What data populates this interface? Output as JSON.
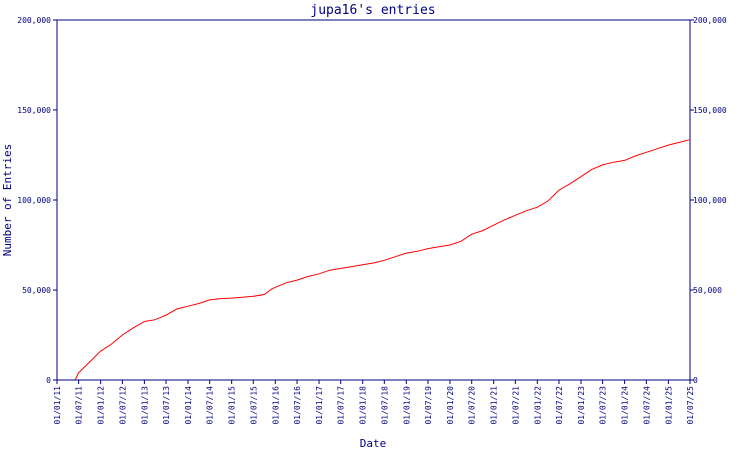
{
  "chart_data": {
    "type": "line",
    "title": "jupa16's entries",
    "xlabel": "Date",
    "ylabel": "Number of Entries",
    "ylim": [
      0,
      200000
    ],
    "y_ticks": [
      {
        "value": 0,
        "label": "0"
      },
      {
        "value": 50000,
        "label": "50,000"
      },
      {
        "value": 100000,
        "label": "100,000"
      },
      {
        "value": 150000,
        "label": "150,000"
      },
      {
        "value": 200000,
        "label": "200,000"
      }
    ],
    "xlim": [
      "2011-01-01",
      "2025-07-01"
    ],
    "x_ticks": [
      {
        "date": "2011-01-01",
        "label": "01/01/11"
      },
      {
        "date": "2011-07-01",
        "label": "01/07/11"
      },
      {
        "date": "2012-01-01",
        "label": "01/01/12"
      },
      {
        "date": "2012-07-01",
        "label": "01/07/12"
      },
      {
        "date": "2013-01-01",
        "label": "01/01/13"
      },
      {
        "date": "2013-07-01",
        "label": "01/07/13"
      },
      {
        "date": "2014-01-01",
        "label": "01/01/14"
      },
      {
        "date": "2014-07-01",
        "label": "01/07/14"
      },
      {
        "date": "2015-01-01",
        "label": "01/01/15"
      },
      {
        "date": "2015-07-01",
        "label": "01/07/15"
      },
      {
        "date": "2016-01-01",
        "label": "01/01/16"
      },
      {
        "date": "2016-07-01",
        "label": "01/07/16"
      },
      {
        "date": "2017-01-01",
        "label": "01/01/17"
      },
      {
        "date": "2017-07-01",
        "label": "01/07/17"
      },
      {
        "date": "2018-01-01",
        "label": "01/01/18"
      },
      {
        "date": "2018-07-01",
        "label": "01/07/18"
      },
      {
        "date": "2019-01-01",
        "label": "01/01/19"
      },
      {
        "date": "2019-07-01",
        "label": "01/07/19"
      },
      {
        "date": "2020-01-01",
        "label": "01/01/20"
      },
      {
        "date": "2020-07-01",
        "label": "01/07/20"
      },
      {
        "date": "2021-01-01",
        "label": "01/01/21"
      },
      {
        "date": "2021-07-01",
        "label": "01/07/21"
      },
      {
        "date": "2022-01-01",
        "label": "01/01/22"
      },
      {
        "date": "2022-07-01",
        "label": "01/07/22"
      },
      {
        "date": "2023-01-01",
        "label": "01/01/23"
      },
      {
        "date": "2023-07-01",
        "label": "01/07/23"
      },
      {
        "date": "2024-01-01",
        "label": "01/01/24"
      },
      {
        "date": "2024-07-01",
        "label": "01/07/24"
      },
      {
        "date": "2025-01-01",
        "label": "01/01/25"
      },
      {
        "date": "2025-07-01",
        "label": "01/07/25"
      }
    ],
    "grid": false,
    "colors": {
      "line": "#ff0000",
      "axes": "#000080",
      "text": "#000080"
    },
    "series": [
      {
        "points": [
          {
            "x": "2011-06-01",
            "y": 0
          },
          {
            "x": "2011-07-01",
            "y": 4000
          },
          {
            "x": "2011-10-01",
            "y": 10000
          },
          {
            "x": "2012-01-01",
            "y": 16000
          },
          {
            "x": "2012-04-01",
            "y": 20000
          },
          {
            "x": "2012-07-01",
            "y": 25000
          },
          {
            "x": "2012-10-01",
            "y": 29000
          },
          {
            "x": "2013-01-01",
            "y": 32500
          },
          {
            "x": "2013-04-01",
            "y": 33500
          },
          {
            "x": "2013-07-01",
            "y": 36000
          },
          {
            "x": "2013-10-01",
            "y": 39500
          },
          {
            "x": "2014-01-01",
            "y": 41000
          },
          {
            "x": "2014-04-01",
            "y": 42500
          },
          {
            "x": "2014-07-01",
            "y": 44500
          },
          {
            "x": "2014-10-01",
            "y": 45200
          },
          {
            "x": "2015-01-01",
            "y": 45500
          },
          {
            "x": "2015-04-01",
            "y": 46000
          },
          {
            "x": "2015-07-01",
            "y": 46500
          },
          {
            "x": "2015-10-01",
            "y": 47500
          },
          {
            "x": "2015-12-01",
            "y": 50500
          },
          {
            "x": "2016-01-01",
            "y": 51500
          },
          {
            "x": "2016-04-01",
            "y": 54000
          },
          {
            "x": "2016-07-01",
            "y": 55500
          },
          {
            "x": "2016-10-01",
            "y": 57500
          },
          {
            "x": "2017-01-01",
            "y": 59000
          },
          {
            "x": "2017-04-01",
            "y": 61000
          },
          {
            "x": "2017-07-01",
            "y": 62000
          },
          {
            "x": "2017-10-01",
            "y": 63000
          },
          {
            "x": "2018-01-01",
            "y": 64000
          },
          {
            "x": "2018-04-01",
            "y": 65000
          },
          {
            "x": "2018-07-01",
            "y": 66500
          },
          {
            "x": "2018-10-01",
            "y": 68500
          },
          {
            "x": "2019-01-01",
            "y": 70500
          },
          {
            "x": "2019-04-01",
            "y": 71500
          },
          {
            "x": "2019-07-01",
            "y": 73000
          },
          {
            "x": "2019-10-01",
            "y": 74000
          },
          {
            "x": "2020-01-01",
            "y": 75000
          },
          {
            "x": "2020-04-01",
            "y": 77000
          },
          {
            "x": "2020-07-01",
            "y": 81000
          },
          {
            "x": "2020-10-01",
            "y": 83000
          },
          {
            "x": "2021-01-01",
            "y": 86000
          },
          {
            "x": "2021-04-01",
            "y": 89000
          },
          {
            "x": "2021-07-01",
            "y": 91500
          },
          {
            "x": "2021-10-01",
            "y": 94000
          },
          {
            "x": "2022-01-01",
            "y": 96000
          },
          {
            "x": "2022-04-01",
            "y": 99500
          },
          {
            "x": "2022-07-01",
            "y": 105500
          },
          {
            "x": "2022-10-01",
            "y": 109000
          },
          {
            "x": "2023-01-01",
            "y": 113000
          },
          {
            "x": "2023-04-01",
            "y": 117000
          },
          {
            "x": "2023-07-01",
            "y": 119500
          },
          {
            "x": "2023-10-01",
            "y": 121000
          },
          {
            "x": "2024-01-01",
            "y": 122000
          },
          {
            "x": "2024-04-01",
            "y": 124500
          },
          {
            "x": "2024-07-01",
            "y": 126500
          },
          {
            "x": "2024-10-01",
            "y": 128500
          },
          {
            "x": "2025-01-01",
            "y": 130500
          },
          {
            "x": "2025-04-01",
            "y": 132000
          },
          {
            "x": "2025-07-01",
            "y": 133500
          }
        ]
      }
    ]
  }
}
